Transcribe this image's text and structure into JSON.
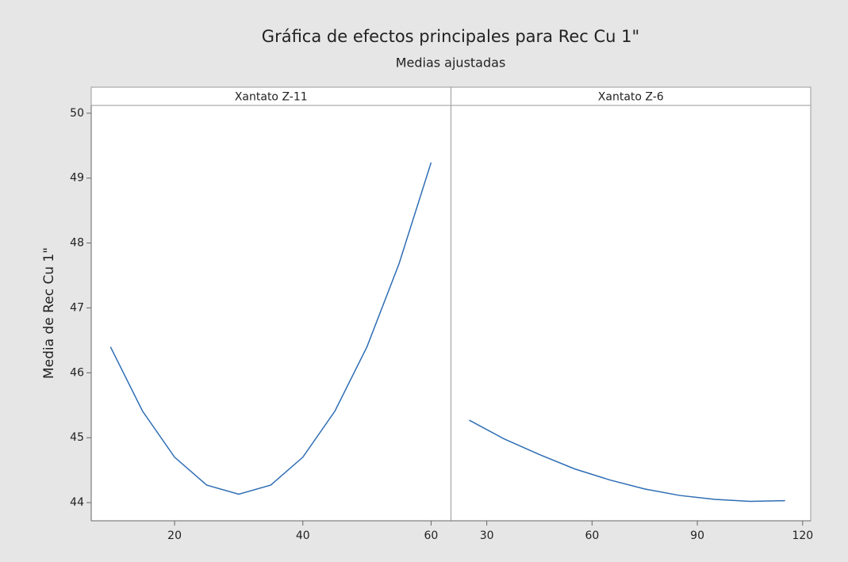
{
  "title": "Gráfica de efectos principales para Rec Cu 1\"",
  "subtitle": "Medias ajustadas",
  "y_label": "Media de Rec Cu 1\"",
  "ylim": [
    43.72,
    50.12
  ],
  "yticks": [
    44,
    45,
    46,
    47,
    48,
    49,
    50
  ],
  "chart_data": [
    {
      "type": "line",
      "panel": "Xantato Z-11",
      "color": "#2e6db4",
      "x": [
        10,
        15,
        20,
        25,
        30,
        35,
        40,
        45,
        50,
        55,
        60
      ],
      "values": [
        46.4,
        45.41,
        44.7,
        44.27,
        44.13,
        44.27,
        44.7,
        45.41,
        46.4,
        47.68,
        49.24
      ],
      "xlim": [
        7,
        63.1
      ],
      "xticks": [
        20,
        40,
        60
      ]
    },
    {
      "type": "line",
      "panel": "Xantato Z-6",
      "color": "#2e6db4",
      "x": [
        25,
        35,
        45,
        55,
        65,
        75,
        85,
        95,
        105,
        115
      ],
      "values": [
        45.27,
        44.98,
        44.74,
        44.52,
        44.35,
        44.21,
        44.11,
        44.05,
        44.02,
        44.03
      ],
      "xlim": [
        19.8,
        122.3
      ],
      "xticks": [
        30,
        60,
        90,
        120
      ]
    }
  ]
}
